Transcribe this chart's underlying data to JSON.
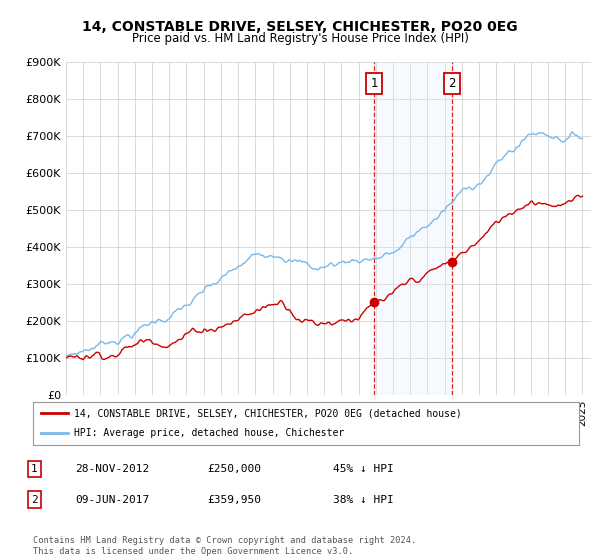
{
  "title": "14, CONSTABLE DRIVE, SELSEY, CHICHESTER, PO20 0EG",
  "subtitle": "Price paid vs. HM Land Registry's House Price Index (HPI)",
  "ylim": [
    0,
    900000
  ],
  "yticks": [
    0,
    100000,
    200000,
    300000,
    400000,
    500000,
    600000,
    700000,
    800000,
    900000
  ],
  "ytick_labels": [
    "£0",
    "£100K",
    "£200K",
    "£300K",
    "£400K",
    "£500K",
    "£600K",
    "£700K",
    "£800K",
    "£900K"
  ],
  "xlim_start": 1995.0,
  "xlim_end": 2025.5,
  "sale1_date": 2012.91,
  "sale1_price": 250000,
  "sale2_date": 2017.44,
  "sale2_price": 359950,
  "hpi_color": "#7ab8e8",
  "price_color": "#cc0000",
  "shade_color": "#ddeeff",
  "legend_property": "14, CONSTABLE DRIVE, SELSEY, CHICHESTER, PO20 0EG (detached house)",
  "legend_hpi": "HPI: Average price, detached house, Chichester",
  "table_row1": [
    "1",
    "28-NOV-2012",
    "£250,000",
    "45% ↓ HPI"
  ],
  "table_row2": [
    "2",
    "09-JUN-2017",
    "£359,950",
    "38% ↓ HPI"
  ],
  "footer": "Contains HM Land Registry data © Crown copyright and database right 2024.\nThis data is licensed under the Open Government Licence v3.0.",
  "background_color": "#ffffff",
  "grid_color": "#cccccc"
}
